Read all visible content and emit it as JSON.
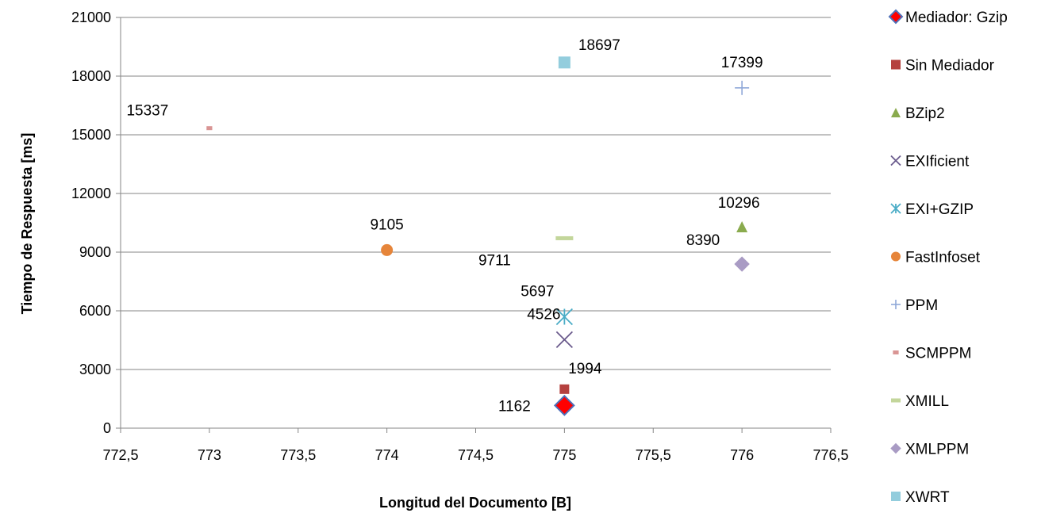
{
  "chart_data": {
    "type": "scatter",
    "xlabel": "Longitud del Documento [B]",
    "ylabel": "Tiempo de Respuesta [ms]",
    "xlim": [
      772.5,
      776.5
    ],
    "ylim": [
      0,
      21000
    ],
    "x_ticks": [
      "772,5",
      "773",
      "773,5",
      "774",
      "774,5",
      "775",
      "775,5",
      "776",
      "776,5"
    ],
    "y_ticks": [
      "0",
      "3000",
      "6000",
      "9000",
      "12000",
      "15000",
      "18000",
      "21000"
    ],
    "grid": "horizontal",
    "legend": "right",
    "series": [
      {
        "name": "Mediador: Gzip",
        "marker": "diamond",
        "color": "#ff0000",
        "stroke": "#4f6fb8",
        "x": 775,
        "y": 1162,
        "label": "1162"
      },
      {
        "name": "Sin Mediador",
        "marker": "square",
        "color": "#b5413f",
        "x": 775,
        "y": 1994,
        "label": "1994"
      },
      {
        "name": "BZip2",
        "marker": "triangle",
        "color": "#8aab4e",
        "x": 776,
        "y": 10296,
        "label": "10296"
      },
      {
        "name": "EXIficient",
        "marker": "x",
        "color": "#6a5a8c",
        "x": 775,
        "y": 4526,
        "label": "4526"
      },
      {
        "name": "EXI+GZIP",
        "marker": "asterisk",
        "color": "#4aacc6",
        "x": 775,
        "y": 5697,
        "label": "5697"
      },
      {
        "name": "FastInfoset",
        "marker": "circle",
        "color": "#e6853a",
        "x": 774,
        "y": 9105,
        "label": "9105"
      },
      {
        "name": "PPM",
        "marker": "plus",
        "color": "#8fa8d8",
        "x": 776,
        "y": 17399,
        "label": "17399"
      },
      {
        "name": "SCMPPM",
        "marker": "dash",
        "color": "#d99594",
        "x": 773,
        "y": 15337,
        "label": "15337"
      },
      {
        "name": "XMILL",
        "marker": "bar",
        "color": "#c3d69b",
        "x": 775,
        "y": 9711,
        "label": "9711"
      },
      {
        "name": "XMLPPM",
        "marker": "diamond",
        "color": "#a99bc4",
        "x": 776,
        "y": 8390,
        "label": "8390"
      },
      {
        "name": "XWRT",
        "marker": "square",
        "color": "#93cddd",
        "x": 775,
        "y": 18697,
        "label": "18697"
      }
    ]
  }
}
